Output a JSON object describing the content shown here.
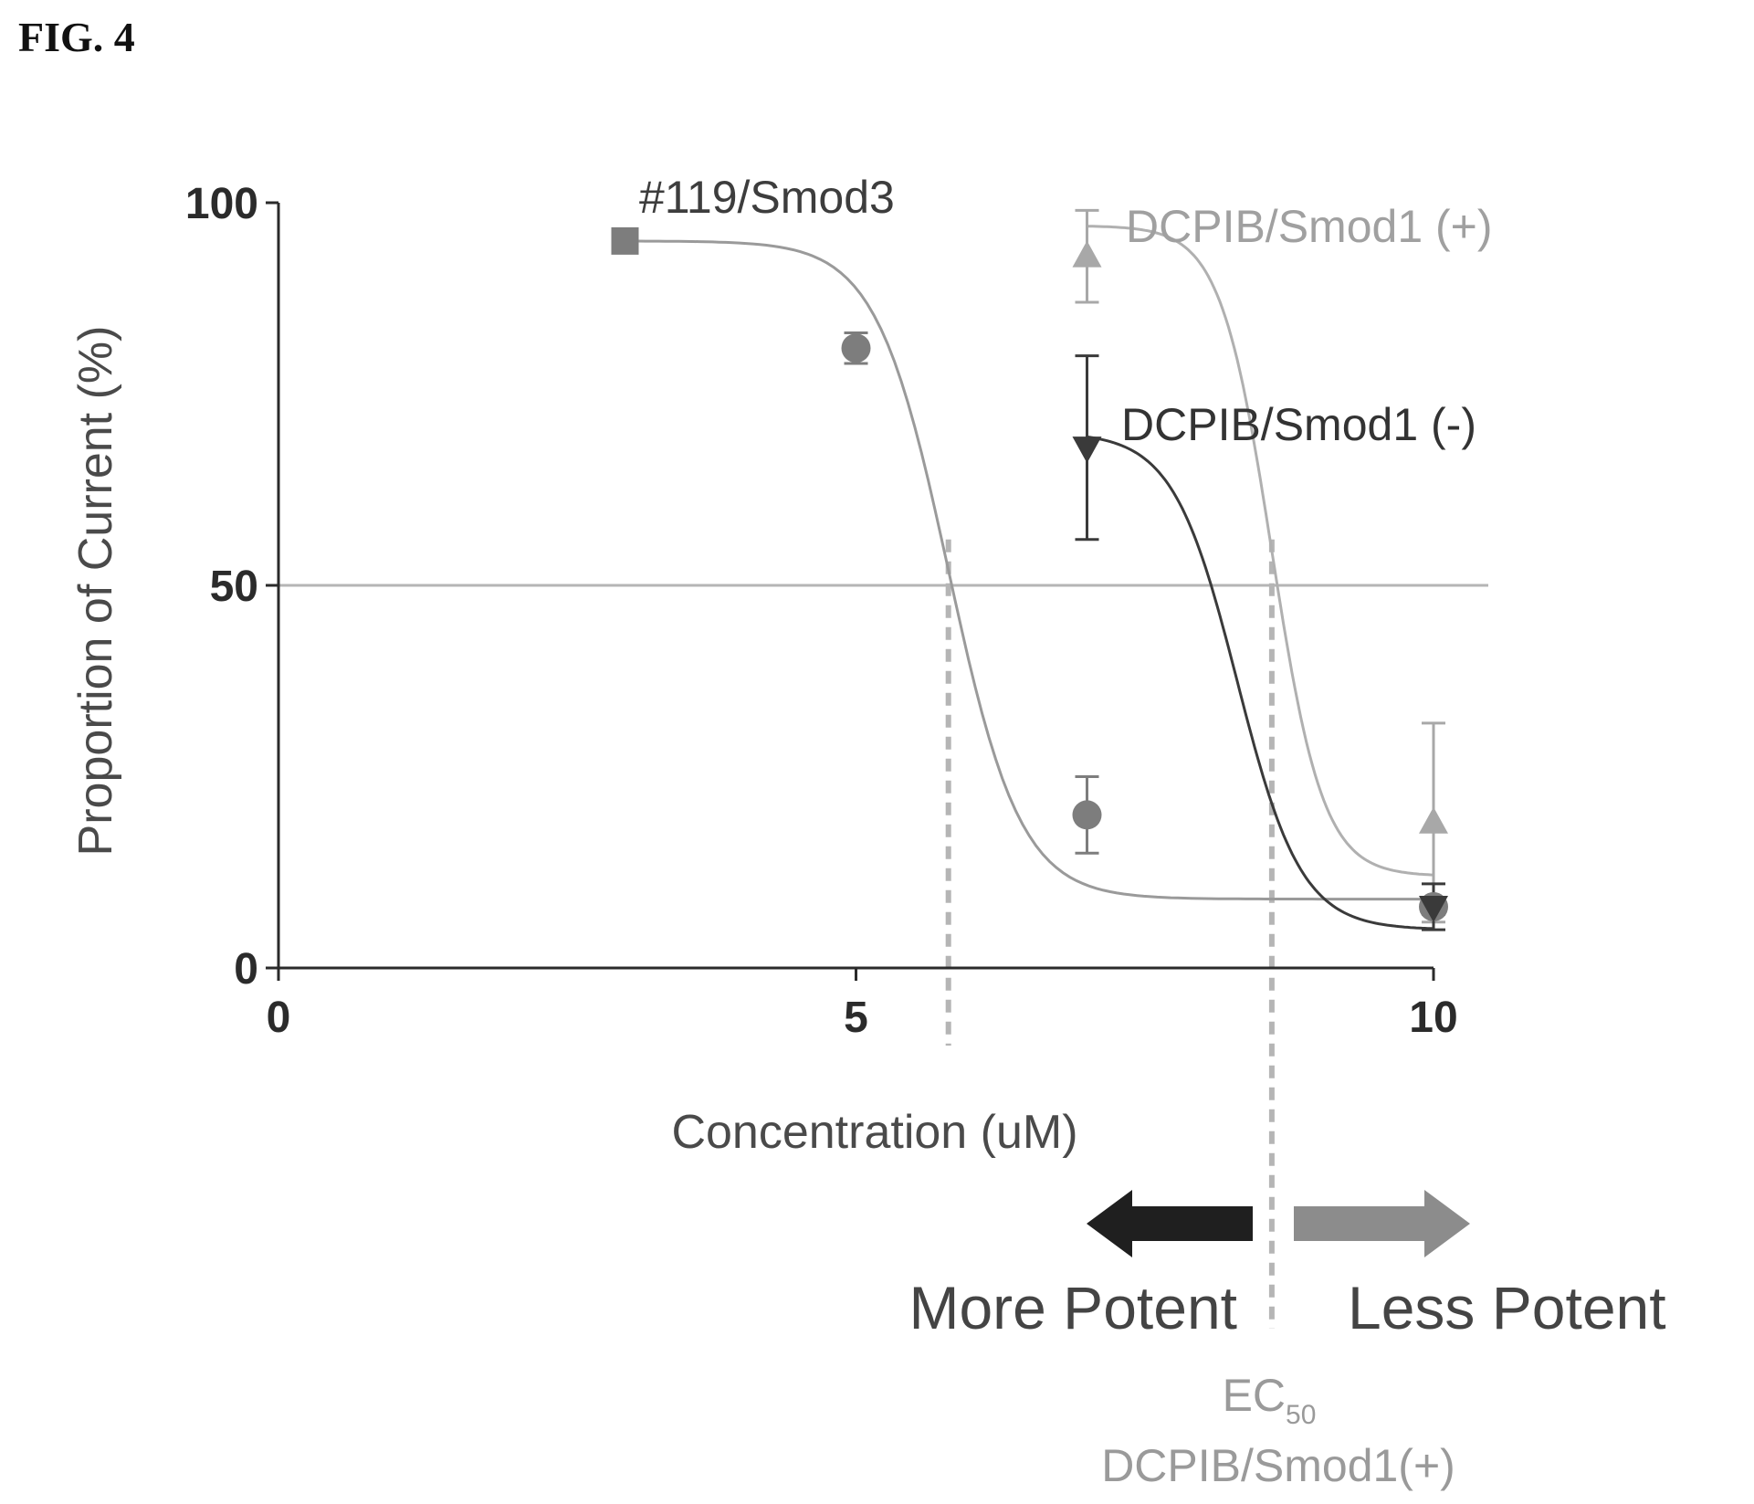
{
  "figure_label": "FIG. 4",
  "colors": {
    "axis": "#2a2a2a",
    "smod3": "#7d7d7d",
    "smod1_plus": "#a8a8a8",
    "smod1_minus": "#3a3a3a",
    "ref_line": "#b5b5b5",
    "arrow_left": "#1f1f1f",
    "arrow_right": "#8c8c8c"
  },
  "chart_data": {
    "type": "scatter",
    "xlabel": "Concentration (uM)",
    "ylabel": "Proportion of Current (%)",
    "xlim": [
      0,
      10
    ],
    "ylim": [
      0,
      100
    ],
    "xticks": [
      "0",
      "5",
      "10"
    ],
    "yticks": [
      "0",
      "50",
      "100"
    ],
    "reference_line_y": 50,
    "grid": false,
    "series": [
      {
        "name": "#119/Smod3",
        "marker": "square-circle",
        "x": [
          3,
          5,
          7,
          10
        ],
        "y": [
          95,
          81,
          20,
          8
        ],
        "err": [
          0,
          2,
          5,
          1
        ],
        "ec50_x": 5.8
      },
      {
        "name": "DCPIB/Smod1 (+)",
        "marker": "triangle-up",
        "x": [
          7,
          10
        ],
        "y": [
          93,
          19
        ],
        "err": [
          6,
          13
        ],
        "ec50_x": 8.6
      },
      {
        "name": "DCPIB/Smod1 (-)",
        "marker": "triangle-down",
        "x": [
          7,
          10
        ],
        "y": [
          68,
          8
        ],
        "err": [
          12,
          3
        ]
      }
    ],
    "annotations": {
      "more_potent": "More Potent",
      "less_potent": "Less Potent",
      "ec50_main": "EC",
      "ec50_sub": "50",
      "ec50_series": "DCPIB/Smod1(+)"
    }
  }
}
